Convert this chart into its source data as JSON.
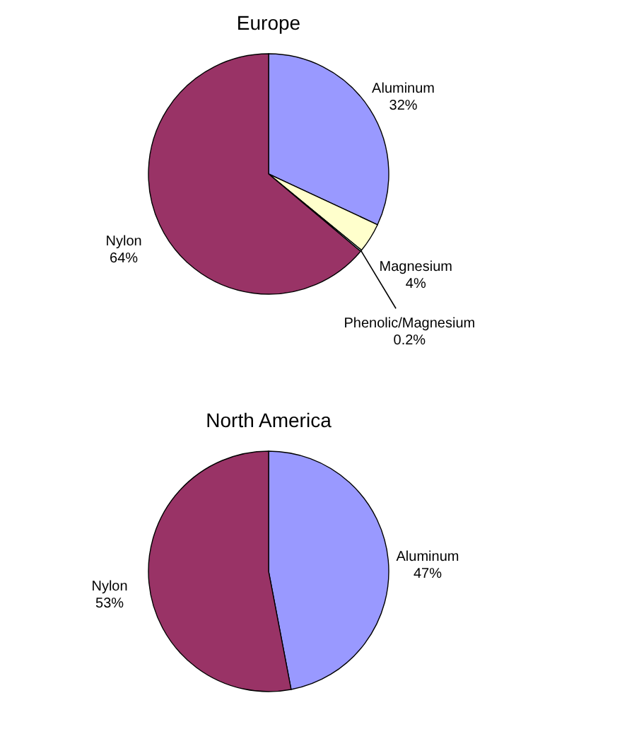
{
  "chart_data": [
    {
      "type": "pie",
      "title": "Europe",
      "categories": [
        "Aluminum",
        "Magnesium",
        "Phenolic/Magnesium",
        "Nylon"
      ],
      "values": [
        32,
        4,
        0.2,
        64
      ],
      "colors": [
        "#9999ff",
        "#ffffcc",
        "#ccffff",
        "#993366"
      ],
      "legend": false,
      "value_labels": [
        "32%",
        "4%",
        "0.2%",
        "64%"
      ]
    },
    {
      "type": "pie",
      "title": "North America",
      "categories": [
        "Aluminum",
        "Nylon"
      ],
      "values": [
        47,
        53
      ],
      "colors": [
        "#9999ff",
        "#993366"
      ],
      "legend": false,
      "value_labels": [
        "47%",
        "53%"
      ]
    }
  ]
}
